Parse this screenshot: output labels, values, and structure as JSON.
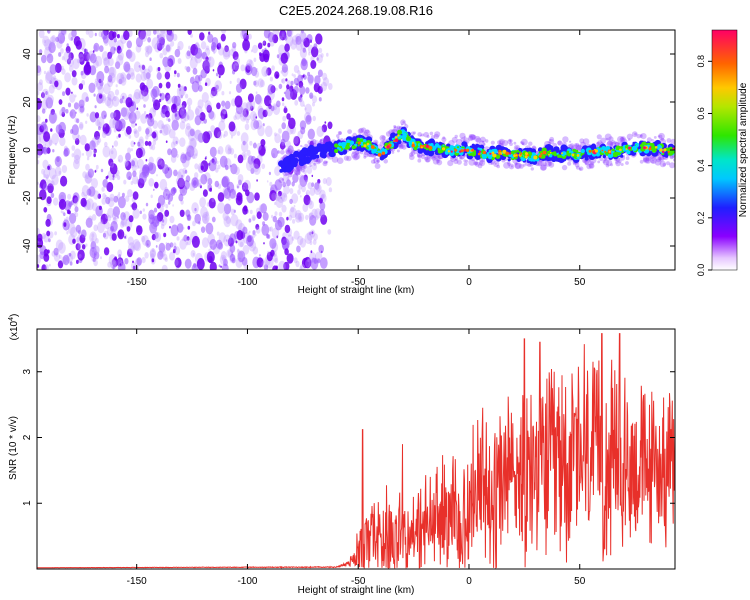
{
  "figure": {
    "title": "C2E5.2024.268.19.08.R16"
  },
  "chart_data": [
    {
      "type": "heatmap",
      "xlabel": "Height of straight line (km)",
      "ylabel": "Frequency (Hz)",
      "xlim": [
        -195,
        93
      ],
      "ylim": [
        -50,
        50
      ],
      "xticks": [
        -150,
        -100,
        -50,
        0,
        50
      ],
      "yticks": [
        -40,
        -20,
        0,
        20,
        40
      ],
      "grid": false,
      "colorbar": {
        "label": "Normalized spectral amplitude",
        "range": [
          0,
          0.92
        ],
        "ticks": [
          "0.0",
          "0.2",
          "0.4",
          "0.6",
          "0.8"
        ],
        "tick_values": [
          0,
          0.2,
          0.4,
          0.6,
          0.8
        ]
      },
      "noise_region_x": [
        -195,
        -65
      ],
      "ridge": {
        "x": [
          -85,
          -80,
          -75,
          -70,
          -65,
          -60,
          -55,
          -50,
          -45,
          -40,
          -35,
          -30,
          -25,
          -20,
          -15,
          -10,
          -5,
          0,
          5,
          10,
          15,
          20,
          25,
          30,
          35,
          40,
          45,
          50,
          55,
          60,
          65,
          70,
          75,
          80,
          85,
          90,
          93
        ],
        "y": [
          -7,
          -5,
          -3,
          -1,
          0,
          1,
          2,
          3,
          2,
          -2,
          3,
          7,
          2,
          1,
          1,
          0,
          0,
          0,
          -1,
          -2,
          -1,
          -2,
          -2,
          -3,
          -1,
          -2,
          -1,
          -2,
          -1,
          0,
          -1,
          0,
          1,
          1,
          1,
          -1,
          0
        ]
      }
    },
    {
      "type": "line",
      "xlabel": "Height of straight line (km)",
      "ylabel": "SNR (10 * v/v)",
      "yscale_label": "(x10",
      "yscale_exp": "4",
      "yscale_suffix": ")",
      "xlim": [
        -195,
        93
      ],
      "ylim": [
        0,
        3.65
      ],
      "xticks": [
        -150,
        -100,
        -50,
        0,
        50
      ],
      "yticks": [
        1,
        2,
        3
      ],
      "grid": false,
      "series": [
        {
          "color": "#e8302a",
          "x": [
            -195,
            -60,
            -55,
            -52,
            -50,
            -48,
            -46,
            -44,
            -42,
            -40,
            -38,
            -36,
            -34,
            -32,
            -30,
            -28,
            -26,
            -24,
            -22,
            -20,
            -18,
            -16,
            -14,
            -12,
            -10,
            -8,
            -6,
            -4,
            -2,
            0,
            2,
            4,
            6,
            8,
            10,
            12,
            14,
            16,
            18,
            20,
            22,
            24,
            26,
            28,
            30,
            32,
            34,
            36,
            38,
            40,
            42,
            44,
            46,
            48,
            50,
            52,
            54,
            56,
            58,
            60,
            62,
            64,
            66,
            68,
            70,
            72,
            74,
            76,
            78,
            80,
            82,
            84,
            86,
            88,
            90,
            93
          ],
          "base": [
            0.02,
            0.03,
            0.08,
            0.2,
            0.32,
            0.42,
            0.45,
            0.48,
            0.55,
            0.62,
            0.58,
            0.6,
            0.62,
            0.6,
            0.58,
            0.55,
            0.55,
            0.6,
            0.65,
            0.72,
            0.75,
            0.78,
            0.8,
            0.85,
            0.88,
            0.92,
            0.95,
            1.0,
            1.05,
            1.1,
            1.15,
            1.2,
            1.25,
            1.3,
            1.35,
            1.4,
            1.45,
            1.5,
            1.55,
            1.55,
            1.6,
            1.6,
            1.65,
            1.65,
            1.7,
            1.7,
            1.72,
            1.75,
            1.75,
            1.75,
            1.78,
            1.8,
            1.8,
            1.8,
            1.8,
            1.8,
            1.8,
            1.78,
            1.78,
            1.78,
            1.75,
            1.75,
            1.75,
            1.72,
            1.72,
            1.7,
            1.7,
            1.7,
            1.7,
            1.68,
            1.68,
            1.66,
            1.66,
            1.65,
            1.65,
            1.65
          ],
          "amp": [
            0.0,
            0.01,
            0.05,
            0.2,
            0.6,
            0.8,
            0.7,
            0.75,
            0.9,
            0.9,
            0.85,
            0.85,
            0.85,
            0.8,
            0.8,
            0.75,
            0.7,
            0.8,
            0.9,
            0.95,
            1.0,
            1.05,
            1.1,
            1.15,
            1.2,
            1.25,
            1.3,
            1.35,
            1.4,
            1.45,
            1.5,
            1.55,
            1.6,
            1.65,
            1.7,
            1.75,
            1.8,
            1.85,
            1.85,
            1.85,
            1.85,
            1.85,
            1.85,
            1.85,
            1.85,
            1.85,
            1.85,
            1.85,
            1.85,
            1.85,
            1.85,
            1.85,
            1.85,
            1.85,
            1.85,
            1.85,
            1.85,
            1.8,
            1.8,
            1.8,
            1.75,
            1.75,
            1.7,
            1.7,
            1.65,
            1.6,
            1.6,
            1.55,
            1.5,
            1.5,
            1.45,
            1.45,
            1.4,
            1.4,
            1.35,
            1.3
          ],
          "peaks": {
            "x": [
              -48,
              -30,
              25,
              32,
              52,
              60,
              68
            ],
            "y": [
              2.12,
              1.9,
              3.5,
              3.45,
              3.42,
              3.58,
              3.58
            ]
          }
        }
      ]
    }
  ]
}
